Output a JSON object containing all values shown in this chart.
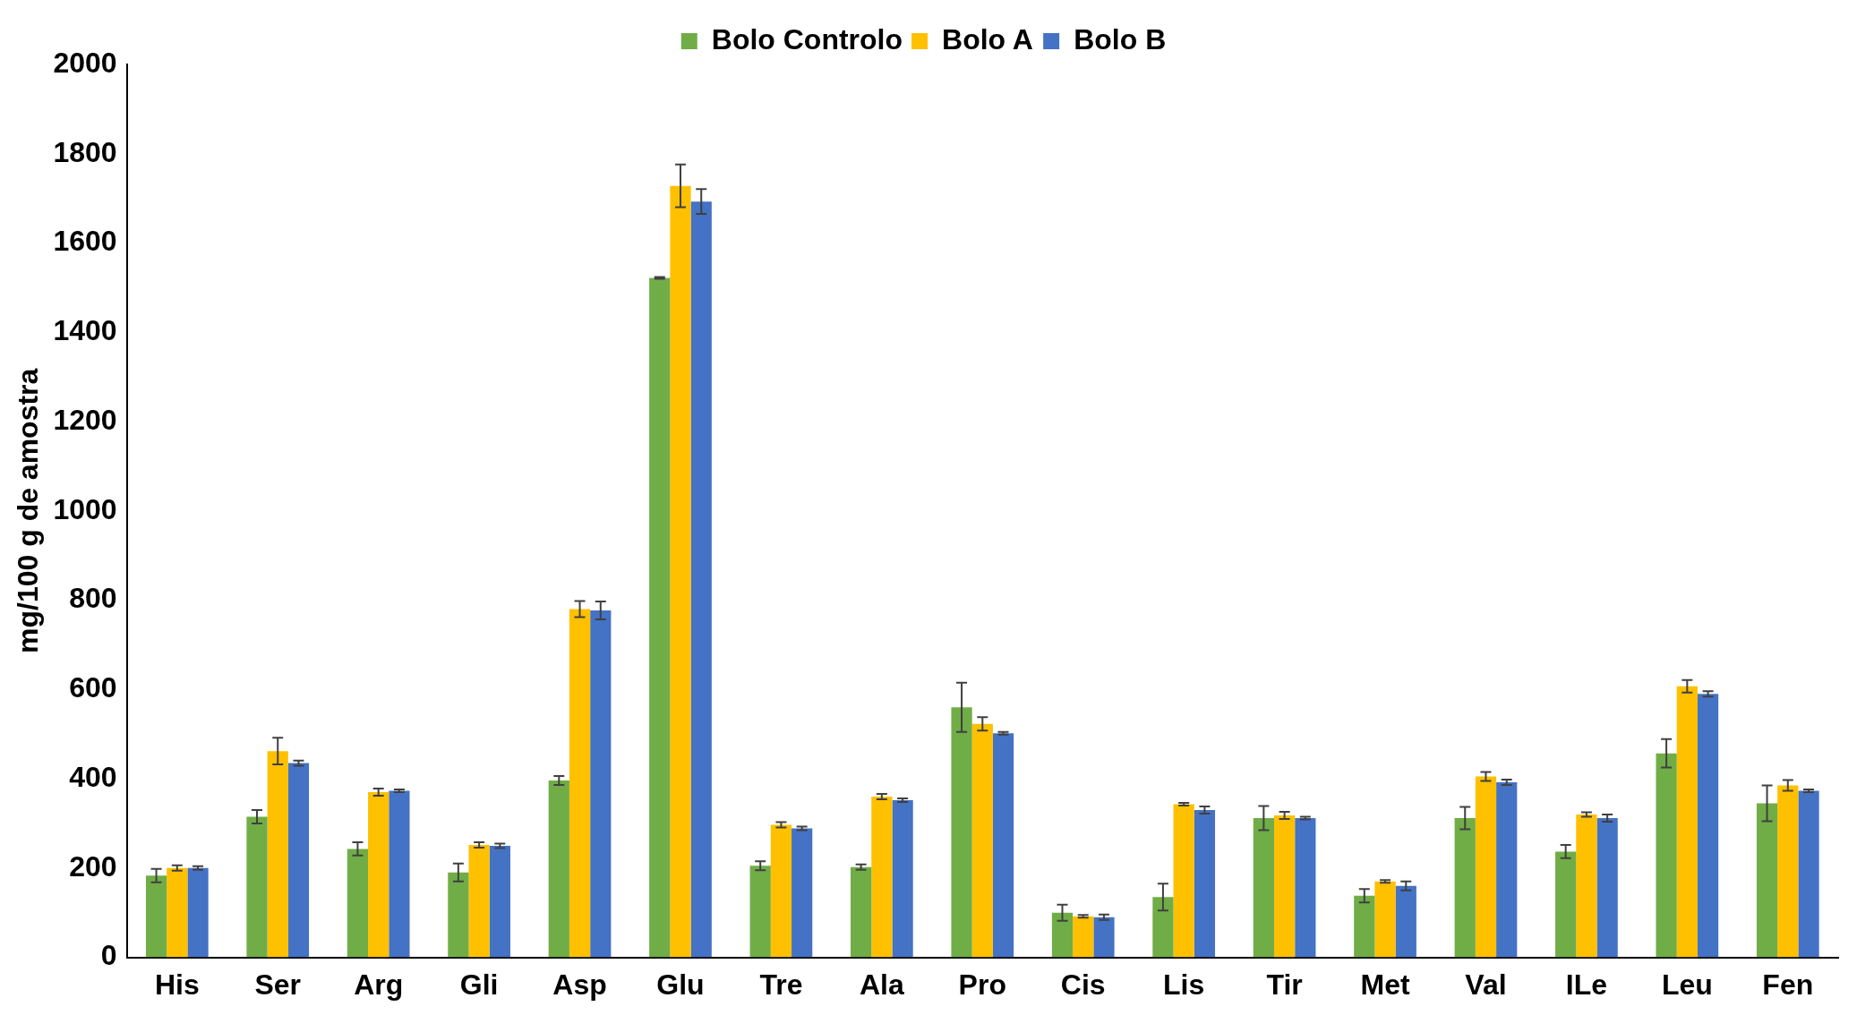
{
  "chart_data": {
    "type": "bar",
    "ylabel": "mg/100 g de amostra",
    "categories": [
      "His",
      "Ser",
      "Arg",
      "Gli",
      "Asp",
      "Glu",
      "Tre",
      "Ala",
      "Pro",
      "Cis",
      "Lis",
      "Tir",
      "Met",
      "Val",
      "ILe",
      "Leu",
      "Fen"
    ],
    "series": [
      {
        "name": "Bolo Controlo",
        "color": "#70ad47",
        "values": [
          183,
          315,
          243,
          190,
          396,
          1522,
          205,
          202,
          560,
          100,
          135,
          312,
          138,
          312,
          237,
          457,
          345
        ],
        "errors": [
          15,
          15,
          15,
          20,
          10,
          2,
          10,
          6,
          55,
          18,
          30,
          27,
          15,
          25,
          15,
          32,
          40
        ]
      },
      {
        "name": "Bolo A",
        "color": "#ffc000",
        "values": [
          200,
          462,
          370,
          252,
          780,
          1728,
          297,
          360,
          523,
          92,
          343,
          318,
          170,
          405,
          320,
          607,
          385
        ],
        "errors": [
          6,
          30,
          8,
          6,
          18,
          48,
          6,
          6,
          15,
          3,
          3,
          8,
          3,
          10,
          5,
          14,
          12
        ]
      },
      {
        "name": "Bolo B",
        "color": "#4472c4",
        "values": [
          200,
          435,
          373,
          250,
          777,
          1693,
          289,
          352,
          502,
          90,
          330,
          312,
          160,
          392,
          312,
          590,
          373
        ],
        "errors": [
          4,
          6,
          3,
          5,
          20,
          28,
          4,
          4,
          3,
          6,
          8,
          3,
          10,
          6,
          8,
          6,
          3
        ]
      }
    ],
    "ylim": [
      0,
      2000
    ],
    "yticks": [
      0,
      200,
      400,
      600,
      800,
      1000,
      1200,
      1400,
      1600,
      1800,
      2000
    ],
    "grid": false,
    "legend": "top"
  }
}
